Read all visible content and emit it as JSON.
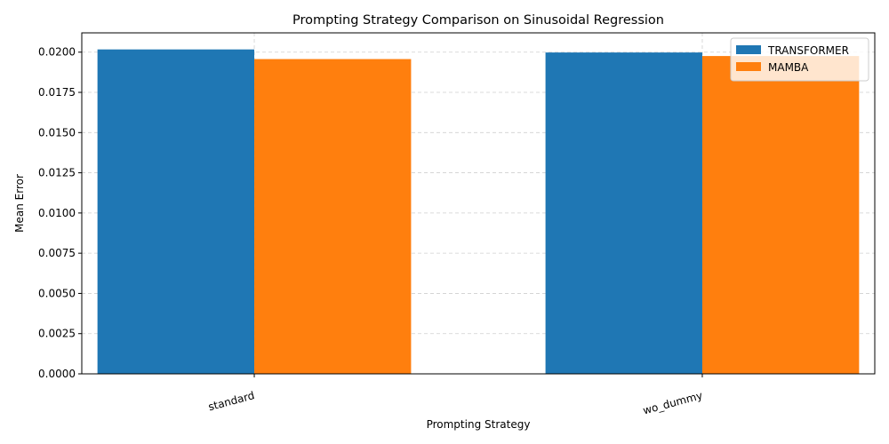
{
  "chart_data": {
    "type": "bar",
    "title": "Prompting Strategy Comparison on Sinusoidal Regression",
    "xlabel": "Prompting Strategy",
    "ylabel": "Mean Error",
    "categories": [
      "standard",
      "wo_dummy"
    ],
    "series": [
      {
        "name": "TRANSFORMER",
        "values": [
          0.02017,
          0.01998
        ],
        "color": "#1f77b4"
      },
      {
        "name": "MAMBA",
        "values": [
          0.01957,
          0.01976
        ],
        "color": "#ff7f0e"
      }
    ],
    "ylim": [
      0,
      0.0212
    ],
    "yticks": [
      "0.0000",
      "0.0025",
      "0.0050",
      "0.0075",
      "0.0100",
      "0.0125",
      "0.0150",
      "0.0175",
      "0.0200"
    ],
    "ytick_values": [
      0,
      0.0025,
      0.005,
      0.0075,
      0.01,
      0.0125,
      0.015,
      0.0175,
      0.02
    ],
    "grid": true,
    "legend_position": "top-right",
    "xtick_rotation": "15 degrees"
  }
}
